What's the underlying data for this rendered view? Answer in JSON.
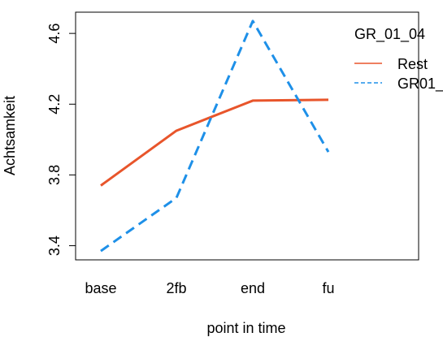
{
  "chart_data": {
    "type": "line",
    "title": "",
    "xlabel": "point in time",
    "ylabel": "Achtsamkeit",
    "categories": [
      "base",
      "2fb",
      "end",
      "fu"
    ],
    "ylim": [
      3.32,
      4.72
    ],
    "yticks": [
      3.4,
      3.8,
      4.2,
      4.6
    ],
    "ytick_labels": [
      "3.4",
      "3.8",
      "4.2",
      "4.6"
    ],
    "grid": false,
    "legend": {
      "title": "GR_01_04",
      "placement": "right-outside-top",
      "entries": [
        "Rest",
        "GR01_"
      ]
    },
    "series": [
      {
        "name": "Rest",
        "values": [
          3.74,
          4.05,
          4.22,
          4.225
        ],
        "color": "#E8552B",
        "dash": "solid"
      },
      {
        "name": "GR01_",
        "values": [
          3.37,
          3.67,
          4.67,
          3.93
        ],
        "color": "#1E90E8",
        "dash": "dashed"
      }
    ]
  }
}
